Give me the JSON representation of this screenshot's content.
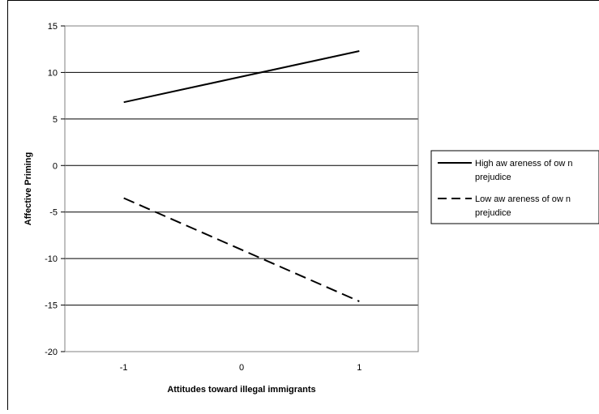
{
  "chart_data": {
    "type": "line",
    "title": "",
    "xlabel": "Attitudes toward illegal immigrants",
    "ylabel": "Affective Priming",
    "x_ticks": [
      "-1",
      "0",
      "1"
    ],
    "y_ticks": [
      "15",
      "10",
      "5",
      "0",
      "-5",
      "-10",
      "-15",
      "-20"
    ],
    "xlim": [
      -1.5,
      1.5
    ],
    "ylim": [
      -20,
      15
    ],
    "grid": "horizontal",
    "legend_position": "right",
    "series": [
      {
        "name": "High aw areness of ow n prejudice",
        "legend_lines": [
          "High aw areness of ow n",
          "prejudice"
        ],
        "style": "solid",
        "color": "#000000",
        "x": [
          -1,
          1
        ],
        "y": [
          6.8,
          12.3
        ]
      },
      {
        "name": "Low aw areness of ow n prejudice",
        "legend_lines": [
          "Low aw areness of ow n",
          "prejudice"
        ],
        "style": "dashed",
        "color": "#000000",
        "x": [
          -1,
          1
        ],
        "y": [
          -3.5,
          -14.6
        ]
      }
    ]
  }
}
